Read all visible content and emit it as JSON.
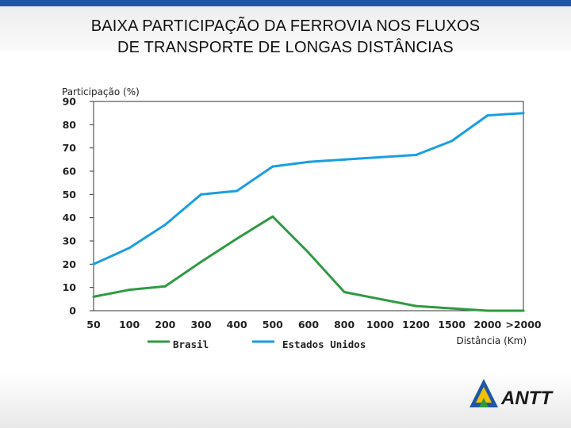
{
  "slide": {
    "title_line1": "BAIXA PARTICIPAÇÃO DA FERROVIA NOS FLUXOS",
    "title_line2": "DE TRANSPORTE DE LONGAS DISTÂNCIAS"
  },
  "logo": {
    "text": "ANTT",
    "colors": [
      "#1f56a6",
      "#f2c200",
      "#2a9a3a"
    ]
  },
  "chart_data": {
    "type": "line",
    "title": "",
    "ylabel": "Participação (%)",
    "xlabel": "Distância (Km)",
    "ylim": [
      0,
      90
    ],
    "yticks": [
      "0",
      "10",
      "20",
      "30",
      "40",
      "50",
      "60",
      "70",
      "80",
      "90"
    ],
    "categories": [
      "50",
      "100",
      "200",
      "300",
      "400",
      "500",
      "600",
      "800",
      "1000",
      "1200",
      "1500",
      "2000",
      ">2000"
    ],
    "series": [
      {
        "name": "Brasil",
        "color": "#2f9a42",
        "x": [
          50,
          100,
          200,
          300,
          400,
          500,
          600,
          800,
          1000,
          1200,
          1500,
          2000,
          ">2000"
        ],
        "values": [
          6,
          9,
          10.5,
          21,
          31,
          40.5,
          25,
          8,
          5,
          2,
          1,
          0,
          0
        ]
      },
      {
        "name": "Estados Unidos",
        "color": "#1a9ee0",
        "x": [
          50,
          100,
          200,
          300,
          400,
          500,
          600,
          800,
          1000,
          1200,
          1500,
          2000,
          ">2000"
        ],
        "values": [
          20,
          27,
          37,
          50,
          51.5,
          62,
          64,
          65,
          66,
          67,
          73,
          84,
          85
        ]
      }
    ],
    "legend": "bottom",
    "grid": false
  }
}
